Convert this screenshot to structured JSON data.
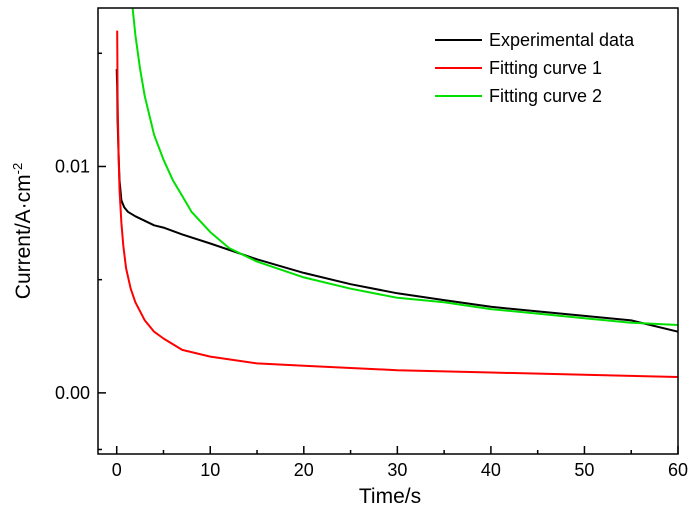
{
  "chart_data": {
    "type": "line",
    "xlabel": "Time/s",
    "ylabel": "Current/A·cm",
    "ylabel_superscript": "-2",
    "xlim": [
      -2,
      60
    ],
    "ylim": [
      -0.0027,
      0.017
    ],
    "x_ticks": [
      {
        "value": 0,
        "label": "0"
      },
      {
        "value": 10,
        "label": "10"
      },
      {
        "value": 20,
        "label": "20"
      },
      {
        "value": 30,
        "label": "30"
      },
      {
        "value": 40,
        "label": "40"
      },
      {
        "value": 50,
        "label": "50"
      },
      {
        "value": 60,
        "label": "60"
      }
    ],
    "y_ticks": [
      {
        "value": 0.0,
        "label": "0.00"
      },
      {
        "value": 0.01,
        "label": "0.01"
      }
    ],
    "grid": false,
    "legend_position": "top-right",
    "series": [
      {
        "name": "Experimental data",
        "color": "#000000",
        "points": [
          [
            0.0,
            0.0143
          ],
          [
            0.05,
            0.0135
          ],
          [
            0.1,
            0.012
          ],
          [
            0.2,
            0.0105
          ],
          [
            0.3,
            0.0094
          ],
          [
            0.5,
            0.0085
          ],
          [
            0.8,
            0.0082
          ],
          [
            1.2,
            0.008
          ],
          [
            2,
            0.0078
          ],
          [
            3,
            0.0076
          ],
          [
            4,
            0.0074
          ],
          [
            5,
            0.0073
          ],
          [
            7,
            0.007
          ],
          [
            10,
            0.0066
          ],
          [
            15,
            0.0059
          ],
          [
            20,
            0.0053
          ],
          [
            25,
            0.0048
          ],
          [
            30,
            0.0044
          ],
          [
            35,
            0.0041
          ],
          [
            40,
            0.0038
          ],
          [
            45,
            0.0036
          ],
          [
            50,
            0.0034
          ],
          [
            55,
            0.0032
          ],
          [
            60,
            0.0027
          ]
        ]
      },
      {
        "name": "Fitting curve 1",
        "color": "#ff0000",
        "points": [
          [
            0.05,
            0.016
          ],
          [
            0.1,
            0.013
          ],
          [
            0.2,
            0.0105
          ],
          [
            0.3,
            0.009
          ],
          [
            0.5,
            0.0075
          ],
          [
            0.7,
            0.0065
          ],
          [
            1,
            0.0055
          ],
          [
            1.5,
            0.0046
          ],
          [
            2,
            0.004
          ],
          [
            3,
            0.0032
          ],
          [
            4,
            0.0027
          ],
          [
            5,
            0.0024
          ],
          [
            7,
            0.0019
          ],
          [
            10,
            0.0016
          ],
          [
            15,
            0.0013
          ],
          [
            20,
            0.0012
          ],
          [
            30,
            0.001
          ],
          [
            40,
            0.0009
          ],
          [
            50,
            0.0008
          ],
          [
            60,
            0.0007
          ]
        ]
      },
      {
        "name": "Fitting curve 2",
        "color": "#00e000",
        "points": [
          [
            1.7,
            0.017
          ],
          [
            2,
            0.0158
          ],
          [
            2.5,
            0.0143
          ],
          [
            3,
            0.0131
          ],
          [
            4,
            0.0114
          ],
          [
            5,
            0.0103
          ],
          [
            6,
            0.0094
          ],
          [
            7,
            0.0087
          ],
          [
            8,
            0.008
          ],
          [
            10,
            0.0071
          ],
          [
            12,
            0.0064
          ],
          [
            15,
            0.0058
          ],
          [
            20,
            0.0051
          ],
          [
            25,
            0.0046
          ],
          [
            30,
            0.0042
          ],
          [
            35,
            0.004
          ],
          [
            40,
            0.0037
          ],
          [
            45,
            0.0035
          ],
          [
            50,
            0.0033
          ],
          [
            55,
            0.0031
          ],
          [
            60,
            0.003
          ]
        ]
      }
    ]
  }
}
